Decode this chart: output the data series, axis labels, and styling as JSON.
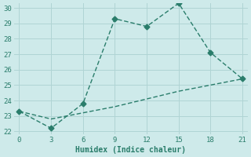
{
  "line1_x": [
    0,
    3,
    6,
    9,
    12,
    15,
    18,
    21
  ],
  "line1_y": [
    23.3,
    22.2,
    23.8,
    29.3,
    28.8,
    30.3,
    27.1,
    25.4
  ],
  "line2_x": [
    0,
    3,
    6,
    9,
    12,
    15,
    18,
    21
  ],
  "line2_y": [
    23.3,
    22.8,
    23.2,
    23.6,
    24.1,
    24.6,
    25.0,
    25.4
  ],
  "line_color": "#2a7d6b",
  "bg_color": "#ceeaea",
  "grid_color": "#b0d4d4",
  "xlabel": "Humidex (Indice chaleur)",
  "xlim": [
    -0.5,
    21.5
  ],
  "ylim": [
    21.8,
    30.3
  ],
  "xticks": [
    0,
    3,
    6,
    9,
    12,
    15,
    18,
    21
  ],
  "yticks": [
    22,
    23,
    24,
    25,
    26,
    27,
    28,
    29,
    30
  ],
  "marker": "D",
  "markersize": 3.5,
  "linewidth": 1.0
}
